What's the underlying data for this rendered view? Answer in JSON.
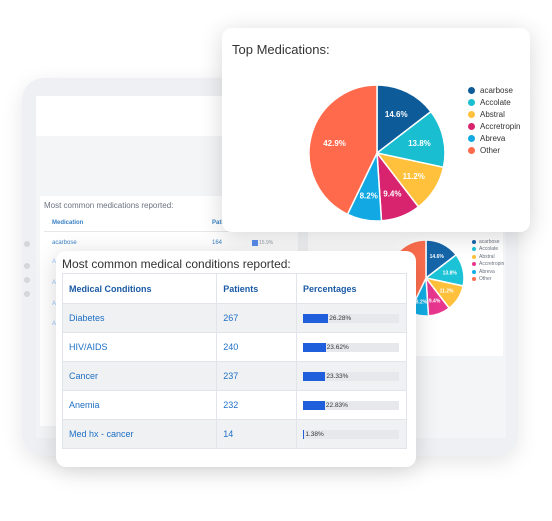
{
  "background": {
    "section_title": "Most common medications reported:",
    "columns": [
      "Medication",
      "Patie"
    ],
    "rows": [
      {
        "name": "acarbose",
        "patients": "164",
        "pct": "15.9%"
      }
    ],
    "row_stubs": [
      "A",
      "A",
      "A",
      "A"
    ],
    "pie": {
      "slices": [
        {
          "label": "14.6%",
          "value": 14.6,
          "color": "#1565a8"
        },
        {
          "label": "13.8%",
          "value": 13.8,
          "color": "#1cc3d6"
        },
        {
          "label": "11.2%",
          "value": 11.2,
          "color": "#ffc13b"
        },
        {
          "label": "9.4%",
          "value": 9.4,
          "color": "#e8368f"
        },
        {
          "label": "8.2%",
          "value": 8.2,
          "color": "#11aee6"
        },
        {
          "label": "42.9%",
          "value": 42.9,
          "color": "#ff6f4f"
        }
      ],
      "legend": [
        "acarbose",
        "Accolate",
        "Abstral",
        "Accretropin",
        "Abreva",
        "Other"
      ]
    }
  },
  "top_medications": {
    "title": "Top Medications:",
    "chart_data": {
      "type": "pie",
      "title": "Top Medications:",
      "slices": [
        {
          "label": "acarbose",
          "value": 14.6,
          "color": "#0d5c99"
        },
        {
          "label": "Accolate",
          "value": 13.8,
          "color": "#19bfd1"
        },
        {
          "label": "Abstral",
          "value": 11.2,
          "color": "#ffc13b"
        },
        {
          "label": "Accretropin",
          "value": 9.4,
          "color": "#d8246f"
        },
        {
          "label": "Abreva",
          "value": 8.2,
          "color": "#11a8e3"
        },
        {
          "label": "Other",
          "value": 42.9,
          "color": "#ff6a4d"
        }
      ],
      "data_labels": [
        "14.6%",
        "13.8%",
        "11.2%",
        "9.4%",
        "8.2%",
        "42.9%"
      ],
      "legend_position": "right"
    }
  },
  "conditions": {
    "title": "Most common medical conditions reported:",
    "headers": {
      "condition": "Medical Conditions",
      "patients": "Patients",
      "percentages": "Percentages"
    },
    "rows": [
      {
        "condition": "Diabetes",
        "patients": "267",
        "pct_label": "26.28%",
        "pct": 26.28
      },
      {
        "condition": "HIV/AIDS",
        "patients": "240",
        "pct_label": "23.62%",
        "pct": 23.62
      },
      {
        "condition": "Cancer",
        "patients": "237",
        "pct_label": "23.33%",
        "pct": 23.33
      },
      {
        "condition": "Anemia",
        "patients": "232",
        "pct_label": "22.83%",
        "pct": 22.83
      },
      {
        "condition": "Med hx - cancer",
        "patients": "14",
        "pct_label": "1.38%",
        "pct": 1.38
      }
    ]
  }
}
